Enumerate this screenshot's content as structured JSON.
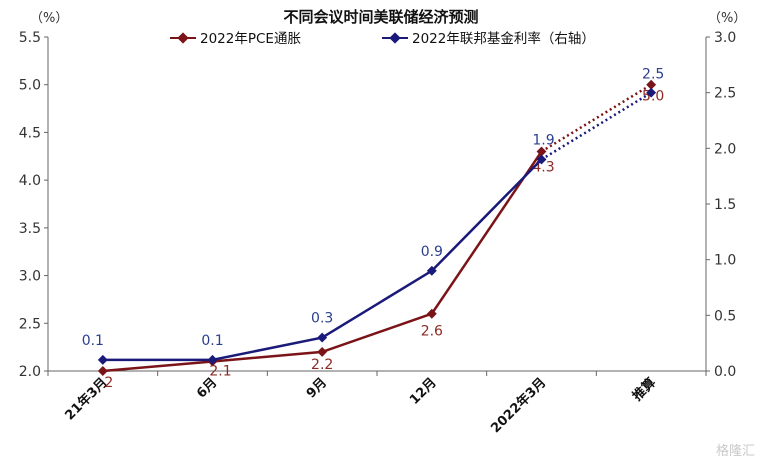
{
  "chart_data": {
    "type": "line",
    "title": "不同会议时间美联储经济预测",
    "left_unit": "（%）",
    "right_unit": "（%）",
    "categories": [
      "21年3月",
      "6月",
      "9月",
      "12月",
      "2022年3月",
      "推算"
    ],
    "y_left": {
      "min": 2.0,
      "max": 5.5,
      "ticks": [
        "2.0",
        "2.5",
        "3.0",
        "3.5",
        "4.0",
        "4.5",
        "5.0",
        "5.5"
      ]
    },
    "y_right": {
      "min": 0.0,
      "max": 3.0,
      "ticks": [
        "0.0",
        "0.5",
        "1.0",
        "1.5",
        "2.0",
        "2.5",
        "3.0"
      ]
    },
    "series": [
      {
        "name": "2022年PCE通胀",
        "axis": "left",
        "color": "#7a1418",
        "values": [
          2.0,
          2.1,
          2.2,
          2.6,
          4.3,
          5.0
        ],
        "labels": [
          "2",
          "2.1",
          "2.2",
          "2.6",
          "4.3",
          "5.0"
        ],
        "dotted_last_segment": true
      },
      {
        "name": "2022年联邦基金利率（右轴）",
        "axis": "right",
        "color": "#1a1a7a",
        "values": [
          0.1,
          0.1,
          0.3,
          0.9,
          1.9,
          2.5
        ],
        "labels": [
          "0.1",
          "0.1",
          "0.3",
          "0.9",
          "1.9",
          "2.5"
        ],
        "dotted_last_segment": true
      }
    ],
    "legend": "top"
  },
  "watermark": "格隆汇"
}
